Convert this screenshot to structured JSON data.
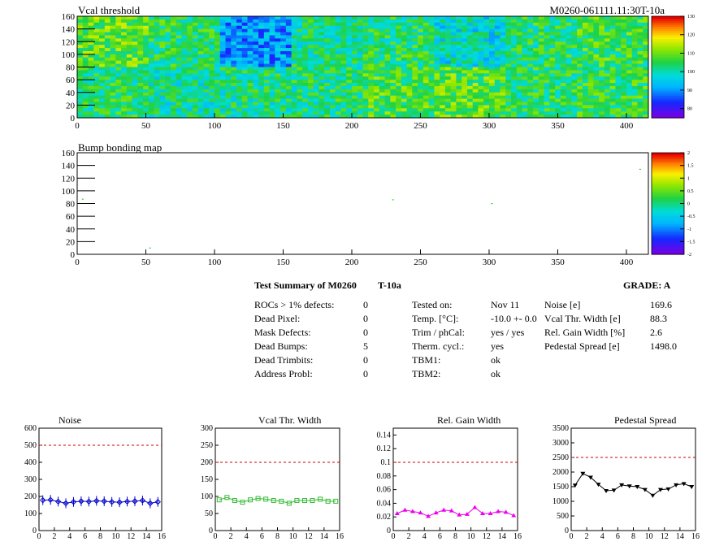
{
  "header": {
    "threshold_title": "Vcal threshold",
    "module_id": "M0260-061111.11:30T-10a",
    "bump_title": "Bump bonding map"
  },
  "summary": {
    "title": "Test Summary of M0260",
    "temp_tag": "T-10a",
    "grade": "GRADE:  A",
    "defects": [
      {
        "label": "ROCs > 1% defects:",
        "value": "0"
      },
      {
        "label": "Dead Pixel:",
        "value": "0"
      },
      {
        "label": "Mask Defects:",
        "value": "0"
      },
      {
        "label": "Dead Bumps:",
        "value": "5"
      },
      {
        "label": "Dead Trimbits:",
        "value": "0"
      },
      {
        "label": "Address Probl:",
        "value": "0"
      }
    ],
    "conditions": [
      {
        "label": "Tested on:",
        "value": "Nov 11"
      },
      {
        "label": "Temp. [°C]:",
        "value": "-10.0 +- 0.0"
      },
      {
        "label": "Trim / phCal:",
        "value": "yes / yes"
      },
      {
        "label": "Therm. cycl.:",
        "value": "yes"
      },
      {
        "label": "TBM1:",
        "value": "ok"
      },
      {
        "label": "TBM2:",
        "value": "ok"
      }
    ],
    "results": [
      {
        "label": "Noise [e]",
        "value": "169.6"
      },
      {
        "label": "Vcal Thr. Width [e]",
        "value": "88.3"
      },
      {
        "label": "Rel. Gain Width [%]",
        "value": "2.6"
      },
      {
        "label": "Pedestal Spread [e]",
        "value": "1498.0"
      }
    ]
  },
  "colors": {
    "noise": "#0000cc",
    "vcal": "#33bb33",
    "gain": "#ee00ee",
    "pedestal": "#000000",
    "limit_line": "#cc0000"
  },
  "chart_data": [
    {
      "type": "heatmap",
      "title": "Vcal threshold",
      "xlim": [
        0,
        416
      ],
      "ylim": [
        0,
        160
      ],
      "x_ticks": [
        0,
        50,
        100,
        150,
        200,
        250,
        300,
        350,
        400
      ],
      "y_ticks": [
        0,
        20,
        40,
        60,
        80,
        100,
        120,
        140,
        160
      ],
      "colorbar": {
        "min": 75,
        "max": 130,
        "ticks": [
          80,
          90,
          100,
          110,
          120,
          130
        ]
      },
      "roc_grid": {
        "columns": 8,
        "rows": 2,
        "col_width": 52,
        "row_height": 80
      },
      "roc_levels": [
        [
          104,
          101,
          102,
          103,
          107,
          108,
          104,
          105
        ],
        [
          109,
          104,
          90,
          102,
          104,
          98,
          104,
          106
        ]
      ]
    },
    {
      "type": "scatter",
      "title": "Bump bonding map",
      "xlim": [
        0,
        416
      ],
      "ylim": [
        0,
        160
      ],
      "x_ticks": [
        0,
        50,
        100,
        150,
        200,
        250,
        300,
        350,
        400
      ],
      "y_ticks": [
        0,
        20,
        40,
        60,
        80,
        100,
        120,
        140,
        160
      ],
      "colorbar": {
        "min": -2,
        "max": 2,
        "ticks": [
          -2,
          -1.5,
          -1,
          -0.5,
          0,
          0.5,
          1,
          1.5,
          2
        ]
      },
      "points": [
        {
          "x": 4,
          "y": 87
        },
        {
          "x": 53,
          "y": 10
        },
        {
          "x": 230,
          "y": 86
        },
        {
          "x": 302,
          "y": 80
        },
        {
          "x": 410,
          "y": 134
        }
      ]
    },
    {
      "type": "line",
      "title": "Noise",
      "xlim": [
        0,
        16
      ],
      "ylim": [
        0,
        600
      ],
      "x_ticks": [
        0,
        2,
        4,
        6,
        8,
        10,
        12,
        14,
        16
      ],
      "y_ticks": [
        0,
        100,
        200,
        300,
        400,
        500,
        600
      ],
      "limit": 500,
      "series": [
        {
          "color_key": "noise",
          "marker": "diamond",
          "x": [
            0.5,
            1.5,
            2.5,
            3.5,
            4.5,
            5.5,
            6.5,
            7.5,
            8.5,
            9.5,
            10.5,
            11.5,
            12.5,
            13.5,
            14.5,
            15.5
          ],
          "values": [
            178,
            180,
            170,
            160,
            168,
            172,
            170,
            174,
            172,
            168,
            166,
            170,
            172,
            176,
            160,
            168
          ]
        }
      ]
    },
    {
      "type": "line",
      "title": "Vcal Thr. Width",
      "xlim": [
        0,
        16
      ],
      "ylim": [
        0,
        300
      ],
      "x_ticks": [
        0,
        2,
        4,
        6,
        8,
        10,
        12,
        14,
        16
      ],
      "y_ticks": [
        0,
        50,
        100,
        150,
        200,
        250,
        300
      ],
      "limit": 200,
      "series": [
        {
          "color_key": "vcal",
          "marker": "square",
          "x": [
            0.5,
            1.5,
            2.5,
            3.5,
            4.5,
            5.5,
            6.5,
            7.5,
            8.5,
            9.5,
            10.5,
            11.5,
            12.5,
            13.5,
            14.5,
            15.5
          ],
          "values": [
            90,
            97,
            88,
            83,
            90,
            94,
            92,
            88,
            86,
            80,
            88,
            88,
            88,
            92,
            86,
            86
          ]
        }
      ]
    },
    {
      "type": "line",
      "title": "Rel. Gain Width",
      "xlim": [
        0,
        16
      ],
      "ylim": [
        0,
        0.15
      ],
      "x_ticks": [
        0,
        2,
        4,
        6,
        8,
        10,
        12,
        14,
        16
      ],
      "y_ticks": [
        0,
        0.02,
        0.04,
        0.06,
        0.08,
        0.1,
        0.12,
        0.14
      ],
      "limit": 0.1,
      "series": [
        {
          "color_key": "gain",
          "marker": "triangle",
          "x": [
            0.5,
            1.5,
            2.5,
            3.5,
            4.5,
            5.5,
            6.5,
            7.5,
            8.5,
            9.5,
            10.5,
            11.5,
            12.5,
            13.5,
            14.5,
            15.5
          ],
          "values": [
            0.025,
            0.03,
            0.028,
            0.026,
            0.021,
            0.026,
            0.03,
            0.029,
            0.023,
            0.024,
            0.034,
            0.025,
            0.025,
            0.028,
            0.027,
            0.022
          ]
        }
      ]
    },
    {
      "type": "line",
      "title": "Pedestal Spread",
      "xlim": [
        0,
        16
      ],
      "ylim": [
        0,
        3500
      ],
      "x_ticks": [
        0,
        2,
        4,
        6,
        8,
        10,
        12,
        14,
        16
      ],
      "y_ticks": [
        0,
        500,
        1000,
        1500,
        2000,
        2500,
        3000,
        3500
      ],
      "limit": 2500,
      "series": [
        {
          "color_key": "pedestal",
          "marker": "triangle-down",
          "x": [
            0.5,
            1.5,
            2.5,
            3.5,
            4.5,
            5.5,
            6.5,
            7.5,
            8.5,
            9.5,
            10.5,
            11.5,
            12.5,
            13.5,
            14.5,
            15.5
          ],
          "values": [
            1550,
            1950,
            1820,
            1580,
            1360,
            1380,
            1560,
            1520,
            1500,
            1400,
            1200,
            1400,
            1420,
            1560,
            1600,
            1500
          ]
        }
      ]
    }
  ]
}
